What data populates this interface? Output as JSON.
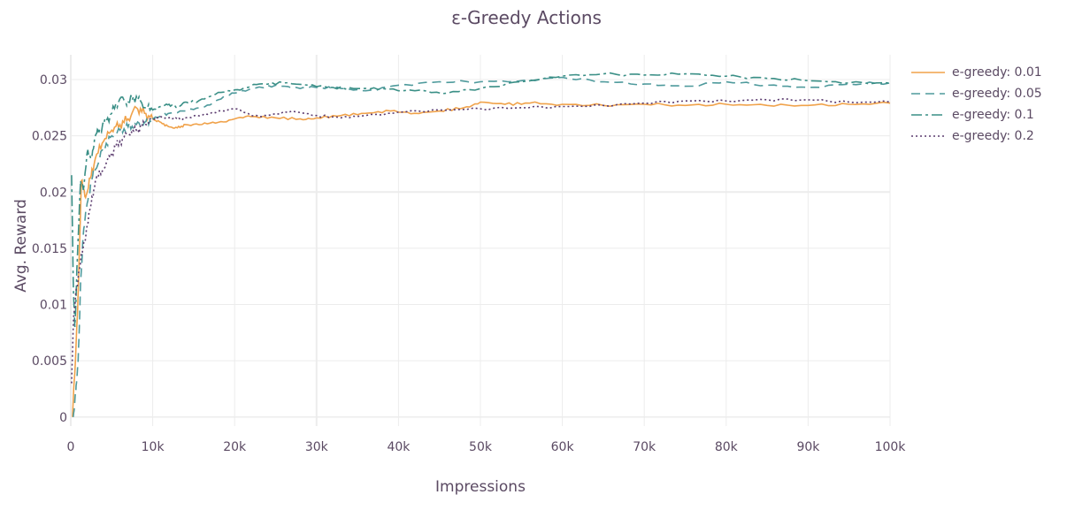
{
  "chart_data": {
    "type": "line",
    "title": "ε-Greedy Actions",
    "xlabel": "Impressions",
    "ylabel": "Avg. Reward",
    "xlim": [
      0,
      100000
    ],
    "ylim": [
      -0.0008,
      0.0322
    ],
    "x_ticks": [
      0,
      10000,
      20000,
      30000,
      40000,
      50000,
      60000,
      70000,
      80000,
      90000,
      100000
    ],
    "x_tick_labels": [
      "0",
      "10k",
      "20k",
      "30k",
      "40k",
      "50k",
      "60k",
      "70k",
      "80k",
      "90k",
      "100k"
    ],
    "y_ticks": [
      0,
      0.005,
      0.01,
      0.015,
      0.02,
      0.025,
      0.03
    ],
    "y_tick_labels": [
      "0",
      "0.005",
      "0.01",
      "0.015",
      "0.02",
      "0.025",
      "0.03"
    ],
    "grid": true,
    "legend_position": "top-right",
    "series": [
      {
        "name": "e-greedy: 0.01",
        "color": "#f0a24a",
        "dash": "solid",
        "x": [
          200,
          500,
          900,
          1300,
          1800,
          2500,
          3000,
          4000,
          5000,
          6000,
          7000,
          8000,
          9000,
          10000,
          11000,
          12000,
          13000,
          14000,
          16000,
          18000,
          20000,
          22000,
          25000,
          28000,
          30000,
          33000,
          36000,
          39000,
          42000,
          45000,
          48000,
          50000,
          53000,
          56000,
          60000,
          65000,
          70000,
          75000,
          80000,
          85000,
          90000,
          95000,
          100000
        ],
        "y": [
          0.0,
          0.004,
          0.011,
          0.021,
          0.0195,
          0.0215,
          0.023,
          0.0245,
          0.0255,
          0.026,
          0.0265,
          0.0275,
          0.027,
          0.0265,
          0.0262,
          0.0258,
          0.0257,
          0.026,
          0.026,
          0.0262,
          0.0265,
          0.0267,
          0.0266,
          0.0265,
          0.0266,
          0.0268,
          0.027,
          0.0272,
          0.027,
          0.0272,
          0.0275,
          0.028,
          0.0278,
          0.0279,
          0.0278,
          0.0277,
          0.0278,
          0.0277,
          0.0278,
          0.0277,
          0.0277,
          0.0278,
          0.0279
        ]
      },
      {
        "name": "e-greedy: 0.05",
        "color": "#4e9a9c",
        "dash": "10,6",
        "x": [
          300,
          600,
          900,
          1200,
          1500,
          2000,
          2500,
          3000,
          4000,
          5000,
          6000,
          7000,
          8000,
          9000,
          10000,
          11000,
          12000,
          14000,
          16000,
          18000,
          20000,
          22000,
          25000,
          28000,
          30000,
          33000,
          36000,
          40000,
          45000,
          50000,
          55000,
          60000,
          65000,
          70000,
          75000,
          80000,
          85000,
          90000,
          95000,
          100000
        ],
        "y": [
          0.0,
          0.002,
          0.005,
          0.012,
          0.016,
          0.019,
          0.021,
          0.022,
          0.024,
          0.025,
          0.0255,
          0.0258,
          0.026,
          0.0262,
          0.0265,
          0.0268,
          0.027,
          0.0272,
          0.0275,
          0.0282,
          0.0288,
          0.0292,
          0.0295,
          0.0292,
          0.0293,
          0.0292,
          0.029,
          0.0295,
          0.0298,
          0.0298,
          0.0299,
          0.0302,
          0.0298,
          0.0296,
          0.0294,
          0.0298,
          0.0295,
          0.0293,
          0.0296,
          0.0297
        ]
      },
      {
        "name": "e-greedy: 0.1",
        "color": "#3a8f86",
        "dash": "12,4,3,4",
        "x": [
          100,
          300,
          500,
          800,
          1200,
          1600,
          2000,
          2500,
          3000,
          3500,
          4000,
          5000,
          6000,
          7000,
          8000,
          9000,
          10000,
          11000,
          12000,
          13000,
          14000,
          15000,
          17000,
          19000,
          21000,
          23000,
          26000,
          29000,
          32000,
          35000,
          38000,
          42000,
          46000,
          50000,
          55000,
          60000,
          65000,
          70000,
          75000,
          80000,
          85000,
          90000,
          95000,
          100000
        ],
        "y": [
          0.0215,
          0.012,
          0.008,
          0.014,
          0.021,
          0.0205,
          0.0235,
          0.023,
          0.025,
          0.0255,
          0.026,
          0.027,
          0.0283,
          0.028,
          0.0285,
          0.0275,
          0.0273,
          0.0276,
          0.0278,
          0.0275,
          0.028,
          0.028,
          0.0285,
          0.029,
          0.0292,
          0.0296,
          0.0297,
          0.0295,
          0.0293,
          0.0292,
          0.0292,
          0.029,
          0.0288,
          0.0292,
          0.0298,
          0.0303,
          0.0305,
          0.0304,
          0.0305,
          0.0303,
          0.0301,
          0.0299,
          0.0297,
          0.0297
        ]
      },
      {
        "name": "e-greedy: 0.2",
        "color": "#5a3a6e",
        "dash": "2,3",
        "x": [
          100,
          300,
          600,
          1000,
          1500,
          2000,
          2500,
          3000,
          4000,
          5000,
          6000,
          7000,
          8000,
          9000,
          10000,
          11000,
          12000,
          13000,
          14000,
          16000,
          18000,
          20000,
          22000,
          24000,
          27000,
          30000,
          33000,
          36000,
          40000,
          45000,
          50000,
          55000,
          60000,
          65000,
          70000,
          75000,
          80000,
          85000,
          90000,
          95000,
          100000
        ],
        "y": [
          0.003,
          0.008,
          0.011,
          0.013,
          0.015,
          0.017,
          0.019,
          0.021,
          0.022,
          0.0235,
          0.0245,
          0.0252,
          0.0255,
          0.026,
          0.0265,
          0.0267,
          0.0266,
          0.0265,
          0.0266,
          0.0268,
          0.0272,
          0.0274,
          0.0268,
          0.0268,
          0.0272,
          0.0268,
          0.0266,
          0.0268,
          0.0271,
          0.0273,
          0.0274,
          0.0275,
          0.0276,
          0.0277,
          0.0279,
          0.0281,
          0.0281,
          0.0282,
          0.0282,
          0.028,
          0.028
        ]
      }
    ]
  }
}
